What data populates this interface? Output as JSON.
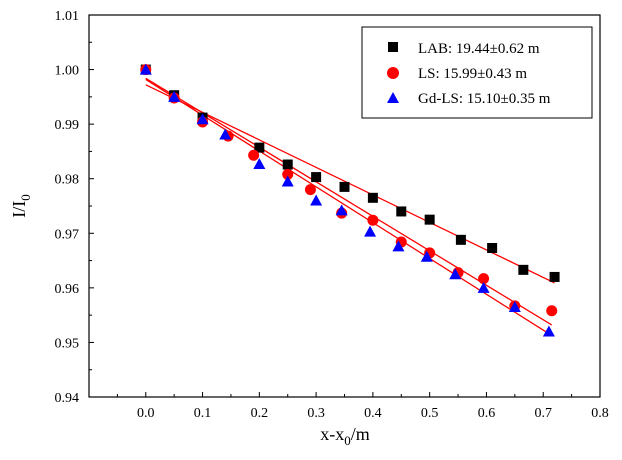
{
  "chart_data": {
    "type": "scatter",
    "xlabel": "x-x",
    "xlabel_sub": "0",
    "xlabel_tail": "/m",
    "ylabel": "I/I",
    "ylabel_sub": "0",
    "xlim": [
      -0.1,
      0.8
    ],
    "ylim": [
      0.94,
      1.01
    ],
    "x_ticks": [
      "0.0",
      "0.1",
      "0.2",
      "0.3",
      "0.4",
      "0.5",
      "0.6",
      "0.7",
      "0.8"
    ],
    "y_ticks": [
      "0.94",
      "0.95",
      "0.96",
      "0.97",
      "0.98",
      "0.99",
      "1.00",
      "1.01"
    ],
    "legend_position": "top-right",
    "grid": false,
    "fit_line_color": "#ff0000",
    "series": [
      {
        "name": "LAB: 19.44±0.62 m",
        "marker": "square",
        "color": "#000000",
        "points": [
          [
            0.0,
            1.0
          ],
          [
            0.05,
            0.9953
          ],
          [
            0.1,
            0.9912
          ],
          [
            0.2,
            0.9857
          ],
          [
            0.25,
            0.9826
          ],
          [
            0.3,
            0.9803
          ],
          [
            0.35,
            0.9785
          ],
          [
            0.4,
            0.9765
          ],
          [
            0.45,
            0.974
          ],
          [
            0.5,
            0.9725
          ],
          [
            0.555,
            0.9688
          ],
          [
            0.61,
            0.9673
          ],
          [
            0.665,
            0.9633
          ],
          [
            0.72,
            0.962
          ]
        ],
        "fit": [
          [
            0.0,
            0.9972
          ],
          [
            0.72,
            0.9609
          ]
        ]
      },
      {
        "name": "LS: 15.99±0.43 m",
        "marker": "circle",
        "color": "#ff0000",
        "points": [
          [
            0.0,
            1.0
          ],
          [
            0.05,
            0.9948
          ],
          [
            0.1,
            0.9904
          ],
          [
            0.145,
            0.9878
          ],
          [
            0.19,
            0.9843
          ],
          [
            0.25,
            0.9808
          ],
          [
            0.29,
            0.978
          ],
          [
            0.345,
            0.9737
          ],
          [
            0.4,
            0.9724
          ],
          [
            0.45,
            0.9684
          ],
          [
            0.5,
            0.9664
          ],
          [
            0.55,
            0.9628
          ],
          [
            0.595,
            0.9617
          ],
          [
            0.65,
            0.9567
          ],
          [
            0.715,
            0.9558
          ]
        ],
        "fit": [
          [
            0.0,
            0.9984
          ],
          [
            0.715,
            0.9532
          ]
        ]
      },
      {
        "name": "Gd-LS: 15.10±0.35 m",
        "marker": "triangle",
        "color": "#0000ff",
        "points": [
          [
            0.0,
            1.0
          ],
          [
            0.05,
            0.995
          ],
          [
            0.1,
            0.9909
          ],
          [
            0.14,
            0.9881
          ],
          [
            0.2,
            0.9827
          ],
          [
            0.25,
            0.9795
          ],
          [
            0.3,
            0.976
          ],
          [
            0.345,
            0.9742
          ],
          [
            0.395,
            0.9703
          ],
          [
            0.445,
            0.9676
          ],
          [
            0.495,
            0.9657
          ],
          [
            0.545,
            0.9625
          ],
          [
            0.595,
            0.96
          ],
          [
            0.65,
            0.9565
          ],
          [
            0.71,
            0.952
          ]
        ],
        "fit": [
          [
            0.0,
            0.9982
          ],
          [
            0.71,
            0.9516
          ]
        ]
      }
    ]
  }
}
